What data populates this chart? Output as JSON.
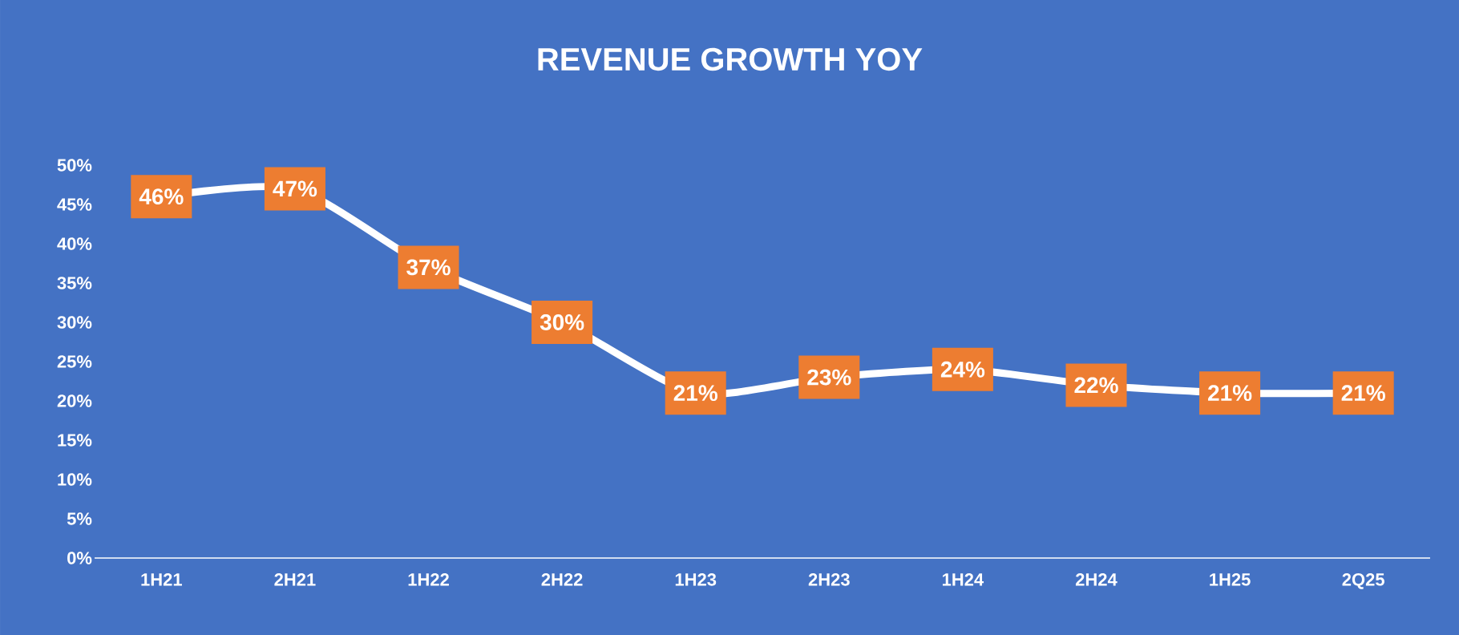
{
  "chart_data": {
    "type": "line",
    "title": "REVENUE GROWTH YOY",
    "categories": [
      "1H21",
      "2H21",
      "1H22",
      "2H22",
      "1H23",
      "2H23",
      "1H24",
      "2H24",
      "1H25",
      "2Q25"
    ],
    "series": [
      {
        "color": "#ffffff",
        "marker": "square",
        "values": [
          46,
          47,
          37,
          30,
          21,
          23,
          24,
          22,
          21,
          21
        ]
      }
    ],
    "value_labels": [
      "46%",
      "47%",
      "37%",
      "30%",
      "21%",
      "23%",
      "24%",
      "22%",
      "21%",
      "21%"
    ],
    "ylim": [
      0,
      50
    ],
    "yticks": [
      {
        "value": 0,
        "label": "0%"
      },
      {
        "value": 5,
        "label": "5%"
      },
      {
        "value": 10,
        "label": "10%"
      },
      {
        "value": 15,
        "label": "15%"
      },
      {
        "value": 20,
        "label": "20%"
      },
      {
        "value": 25,
        "label": "25%"
      },
      {
        "value": 30,
        "label": "30%"
      },
      {
        "value": 35,
        "label": "35%"
      },
      {
        "value": 40,
        "label": "40%"
      },
      {
        "value": 45,
        "label": "45%"
      },
      {
        "value": 50,
        "label": "50%"
      }
    ]
  }
}
